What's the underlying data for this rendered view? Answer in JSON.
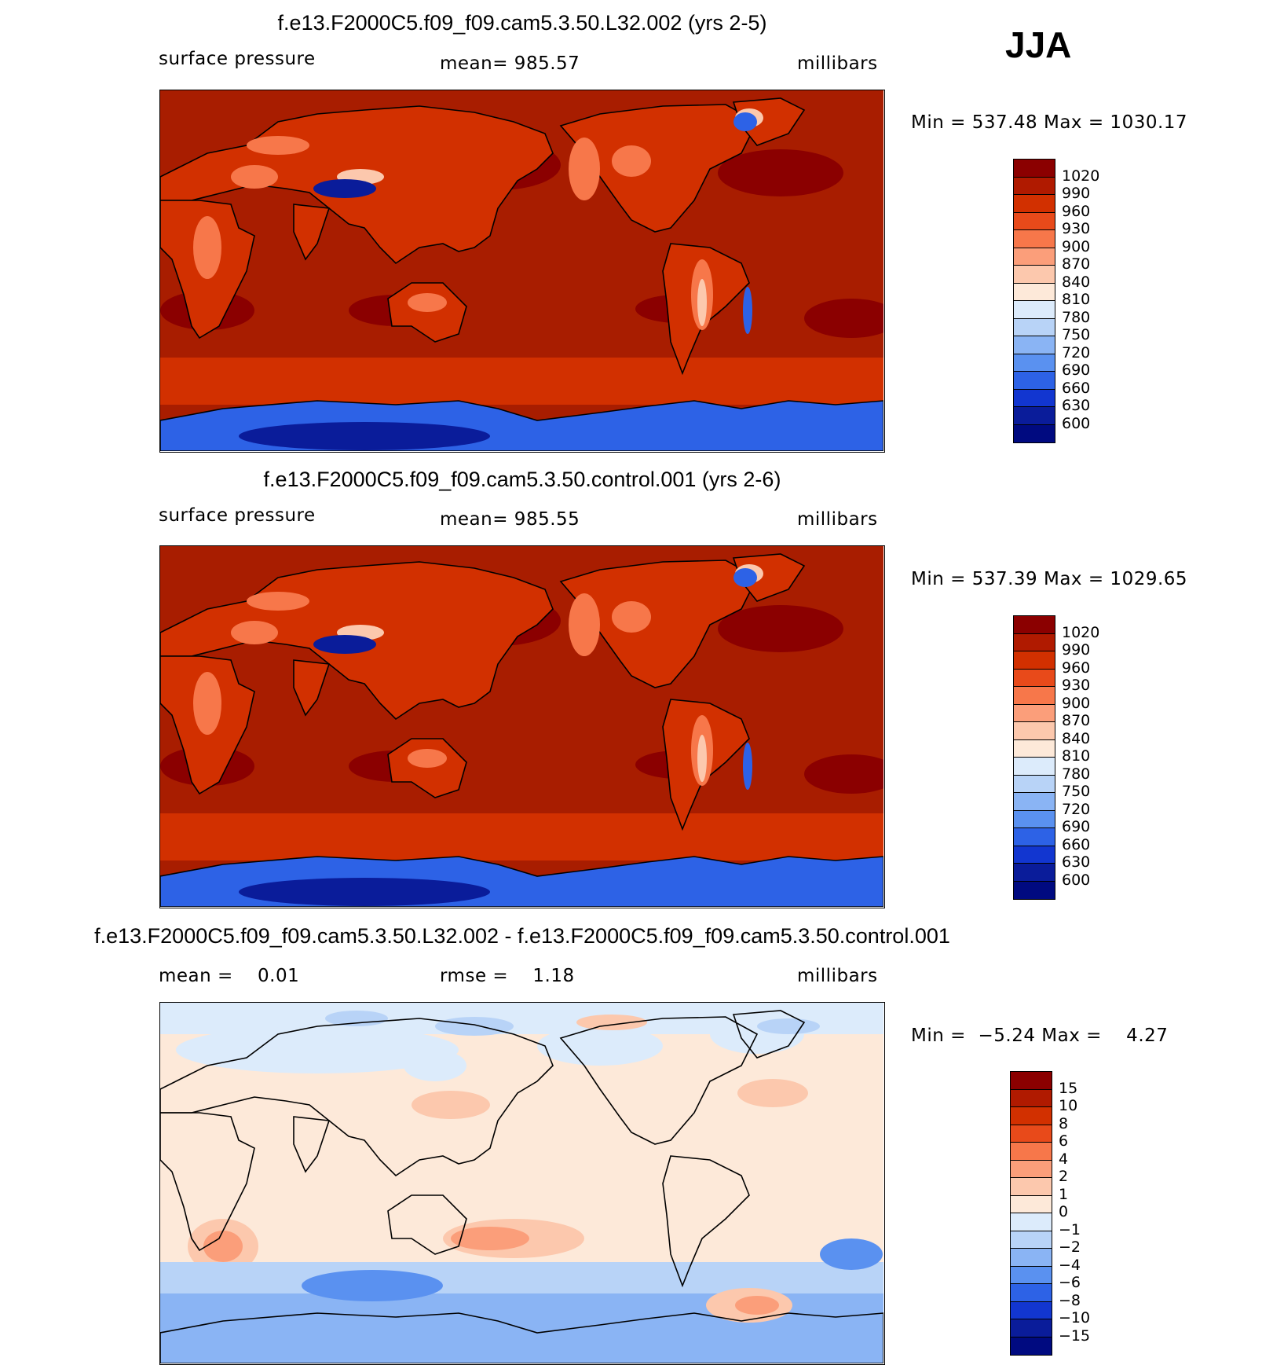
{
  "season": "JJA",
  "panels": [
    {
      "title": "f.e13.F2000C5.f09_f09.cam5.3.50.L32.002 (yrs 2-5)",
      "left_label": "surface pressure",
      "center_label": "mean= 985.57",
      "right_label": "millibars",
      "minmax": "Min = 537.48 Max = 1030.17",
      "kind": "abs"
    },
    {
      "title": "f.e13.F2000C5.f09_f09.cam5.3.50.control.001 (yrs 2-6)",
      "left_label": "surface pressure",
      "center_label": "mean= 985.55",
      "right_label": "millibars",
      "minmax": "Min = 537.39 Max = 1029.65",
      "kind": "abs"
    },
    {
      "title": "f.e13.F2000C5.f09_f09.cam5.3.50.L32.002 - f.e13.F2000C5.f09_f09.cam5.3.50.control.001",
      "left_label": "mean =    0.01",
      "center_label": "rmse =    1.18",
      "right_label": "millibars",
      "minmax": "Min =  −5.24 Max =    4.27",
      "kind": "diff"
    }
  ],
  "colorbars": {
    "abs": {
      "labels": [
        "1020",
        "990",
        "960",
        "930",
        "900",
        "870",
        "840",
        "810",
        "780",
        "750",
        "720",
        "690",
        "660",
        "630",
        "600"
      ],
      "colors": [
        "#8b0000",
        "#b01a00",
        "#d23000",
        "#e84a1a",
        "#f7774a",
        "#fb9e7a",
        "#fcc8ad",
        "#fde9d9",
        "#dcebfb",
        "#b8d3f7",
        "#8ab4f4",
        "#5a91f0",
        "#2d62e6",
        "#1236d0",
        "#0a1c9a",
        "#000a80"
      ]
    },
    "diff": {
      "labels": [
        "15",
        "10",
        "8",
        "6",
        "4",
        "2",
        "1",
        "0",
        "−1",
        "−2",
        "−4",
        "−6",
        "−8",
        "−10",
        "−15"
      ],
      "colors": [
        "#8b0000",
        "#b01a00",
        "#d23000",
        "#e84a1a",
        "#f7774a",
        "#fb9e7a",
        "#fcc8ad",
        "#fde9d9",
        "#dcebfb",
        "#b8d3f7",
        "#8ab4f4",
        "#5a91f0",
        "#2d62e6",
        "#1236d0",
        "#0a1c9a",
        "#000a80"
      ]
    }
  },
  "fills": {
    "ocean": "#a81d00",
    "high": "#8b0000",
    "southern_band": "#d23000",
    "land": "#d23000",
    "land_light": "#f7774a",
    "land_pale": "#fcc8ad",
    "plateau": "#0a1c9a",
    "antarctic": "#2d62e6",
    "diff_base": "#fde9d9",
    "diff_neg1": "#dcebfb",
    "diff_neg2": "#b8d3f7",
    "diff_neg4": "#8ab4f4",
    "diff_neg6": "#5a91f0",
    "diff_pos2": "#fcc8ad",
    "diff_pos4": "#fb9e7a"
  }
}
